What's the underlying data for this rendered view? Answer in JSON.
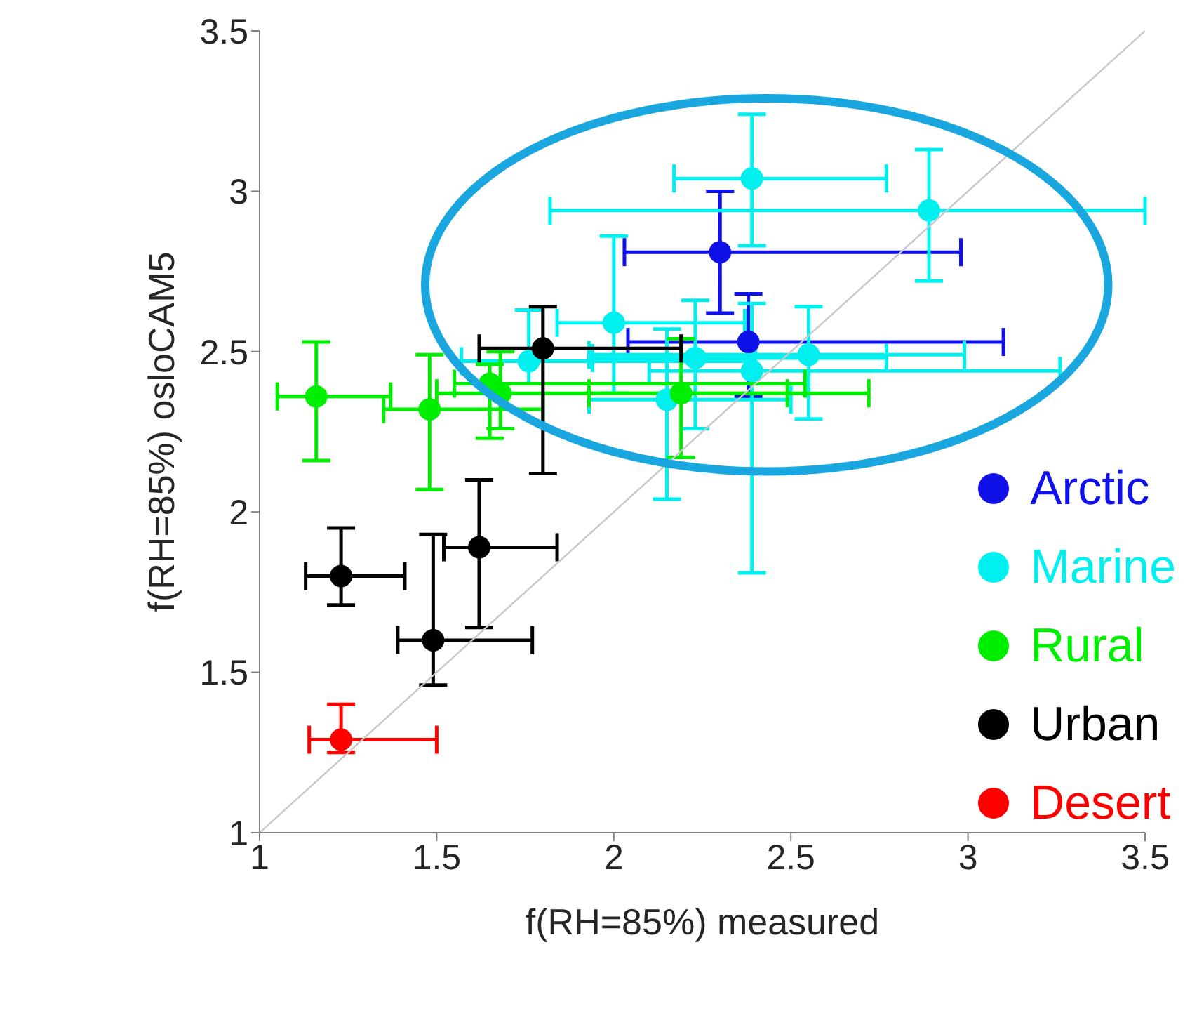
{
  "chart_data": {
    "type": "scatter",
    "xlabel": "f(RH=85%) measured",
    "ylabel": "f(RH=85%) osloCAM5",
    "xlim": [
      1,
      3.5
    ],
    "ylim": [
      1,
      3.5
    ],
    "xticks": [
      1,
      1.5,
      2,
      2.5,
      3,
      3.5
    ],
    "yticks": [
      1,
      1.5,
      2,
      2.5,
      3,
      3.5
    ],
    "legend": "right",
    "marker": "circle",
    "series": [
      {
        "name": "Arctic",
        "color": "#1010e8",
        "x": [
          2.3,
          2.38
        ],
        "values": [
          2.81,
          2.53
        ],
        "errors": [
          [
            2.62,
            3.0
          ],
          [
            2.36,
            2.68
          ]
        ],
        "xerrors": [
          [
            2.03,
            2.98
          ],
          [
            2.04,
            3.1
          ]
        ]
      },
      {
        "name": "Marine",
        "color": "#00f0f0",
        "x": [
          2.39,
          2.89,
          2.0,
          2.23,
          2.39,
          2.55,
          2.15,
          1.76
        ],
        "values": [
          3.04,
          2.94,
          2.59,
          2.48,
          2.44,
          2.49,
          2.35,
          2.47
        ],
        "errors": [
          [
            2.83,
            3.24
          ],
          [
            2.72,
            3.13
          ],
          [
            2.37,
            2.86
          ],
          [
            2.26,
            2.66
          ],
          [
            1.81,
            2.65
          ],
          [
            2.29,
            2.64
          ],
          [
            2.04,
            2.57
          ],
          [
            2.4,
            2.63
          ]
        ],
        "xerrors": [
          [
            2.17,
            2.77
          ],
          [
            1.82,
            3.5
          ],
          [
            1.84,
            2.37
          ],
          [
            1.94,
            2.77
          ],
          [
            2.1,
            3.26
          ],
          [
            1.93,
            2.99
          ],
          [
            1.93,
            2.5
          ],
          [
            1.57,
            2.4
          ]
        ]
      },
      {
        "name": "Rural",
        "color": "#00ee00",
        "x": [
          1.16,
          1.48,
          1.65,
          1.68,
          2.19
        ],
        "values": [
          2.36,
          2.32,
          2.4,
          2.37,
          2.37
        ],
        "errors": [
          [
            2.16,
            2.53
          ],
          [
            2.07,
            2.49
          ],
          [
            2.23,
            2.46
          ],
          [
            2.26,
            2.5
          ],
          [
            2.17,
            2.54
          ]
        ],
        "xerrors": [
          [
            1.05,
            1.37
          ],
          [
            1.35,
            1.8
          ],
          [
            1.55,
            2.54
          ],
          [
            1.5,
            2.49
          ],
          [
            1.93,
            2.72
          ]
        ]
      },
      {
        "name": "Urban",
        "color": "#000000",
        "x": [
          1.23,
          1.49,
          1.62,
          1.8
        ],
        "values": [
          1.8,
          1.6,
          1.89,
          2.51
        ],
        "errors": [
          [
            1.71,
            1.95
          ],
          [
            1.46,
            1.93
          ],
          [
            1.64,
            2.1
          ],
          [
            2.12,
            2.64
          ]
        ],
        "xerrors": [
          [
            1.13,
            1.41
          ],
          [
            1.39,
            1.77
          ],
          [
            1.52,
            1.84
          ],
          [
            1.62,
            2.19
          ]
        ]
      },
      {
        "name": "Desert",
        "color": "#ff0000",
        "x": [
          1.23
        ],
        "values": [
          1.29
        ],
        "errors": [
          [
            1.25,
            1.4
          ]
        ],
        "xerrors": [
          [
            1.14,
            1.5
          ]
        ]
      },
      {
        "type": "line",
        "marker": "none",
        "color": "#c8c8c8",
        "x": [
          1,
          3.5
        ],
        "values": [
          1,
          3.5
        ]
      }
    ]
  }
}
